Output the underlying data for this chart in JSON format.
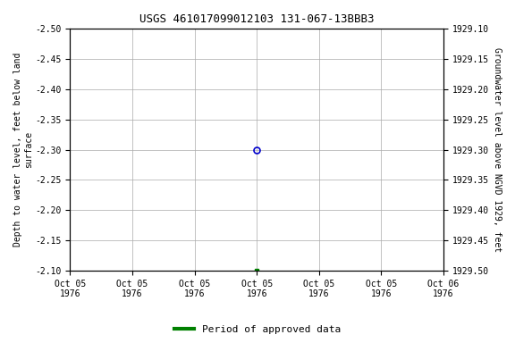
{
  "title": "USGS 461017099012103 131-067-13BBB3",
  "ylabel_left": "Depth to water level, feet below land\nsurface",
  "ylabel_right": "Groundwater level above NGVD 1929, feet",
  "ylim_left": [
    -2.1,
    -2.5
  ],
  "ylim_right": [
    1929.5,
    1929.1
  ],
  "yticks_left": [
    -2.1,
    -2.15,
    -2.2,
    -2.25,
    -2.3,
    -2.35,
    -2.4,
    -2.45,
    -2.5
  ],
  "ytick_labels_left": [
    "-2.10",
    "-2.15",
    "-2.20",
    "-2.25",
    "-2.30",
    "-2.35",
    "-2.40",
    "-2.45",
    "-2.50"
  ],
  "yticks_right": [
    1929.5,
    1929.45,
    1929.4,
    1929.35,
    1929.3,
    1929.25,
    1929.2,
    1929.15,
    1929.1
  ],
  "ytick_labels_right": [
    "1929.50",
    "1929.45",
    "1929.40",
    "1929.35",
    "1929.30",
    "1929.25",
    "1929.20",
    "1929.15",
    "1929.10"
  ],
  "xlim": [
    0,
    6
  ],
  "xtick_positions": [
    0,
    1,
    2,
    3,
    4,
    5,
    6
  ],
  "xtick_labels": [
    "Oct 05\n1976",
    "Oct 05\n1976",
    "Oct 05\n1976",
    "Oct 05\n1976",
    "Oct 05\n1976",
    "Oct 05\n1976",
    "Oct 06\n1976"
  ],
  "point_blue_x": 3.0,
  "point_blue_y": -2.3,
  "point_green_x": 3.0,
  "point_green_y": -2.1,
  "blue_color": "#0000CC",
  "green_color": "#008000",
  "bg_color": "#ffffff",
  "grid_color": "#aaaaaa",
  "legend_label": "Period of approved data",
  "font_family": "monospace"
}
